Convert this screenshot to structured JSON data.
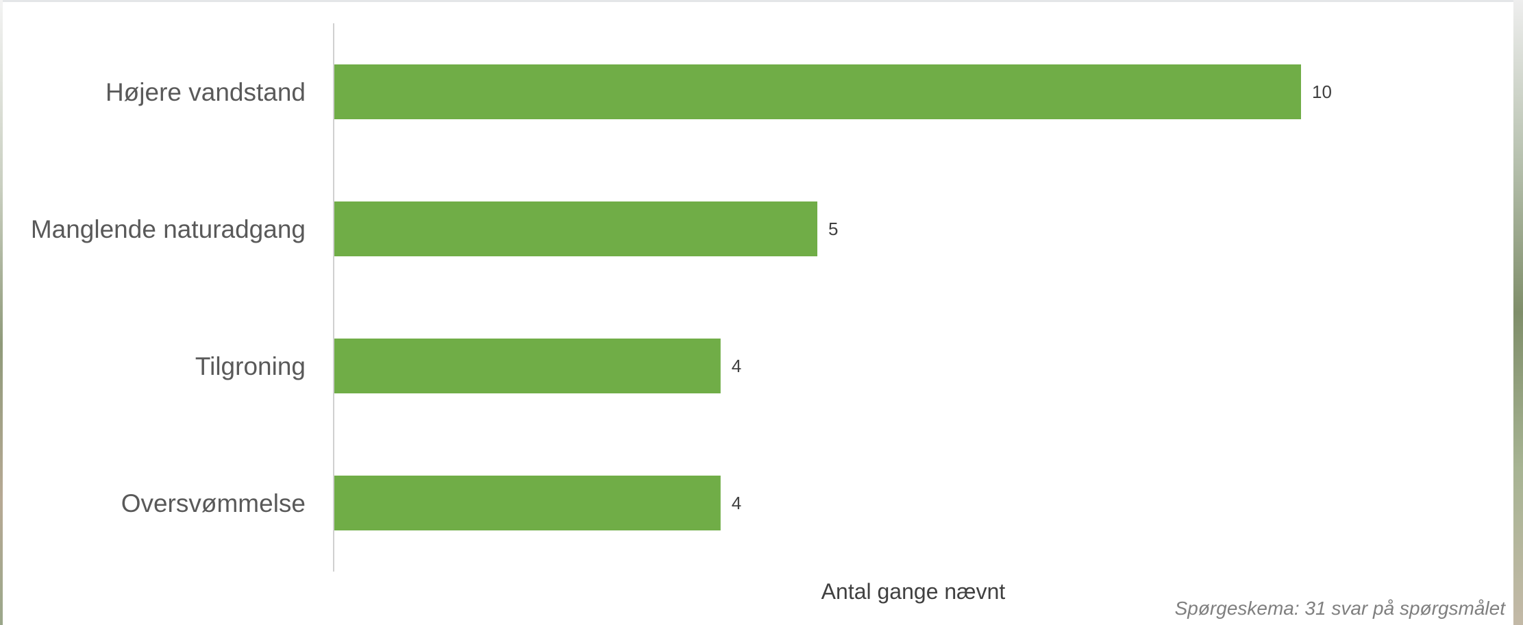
{
  "chart_data": {
    "type": "bar",
    "orientation": "horizontal",
    "categories": [
      "Højere vandstand",
      "Manglende naturadgang",
      "Tilgroning",
      "Oversvømmelse"
    ],
    "values": [
      10,
      5,
      4,
      4
    ],
    "xlabel": "Antal gange nævnt",
    "ylabel": "",
    "xlim": [
      0,
      10
    ],
    "grid": false,
    "bar_color": "#70ad47",
    "data_labels": [
      "10",
      "5",
      "4",
      "4"
    ]
  },
  "note": "Spørgeskema: 31 svar på spørgsmålet"
}
